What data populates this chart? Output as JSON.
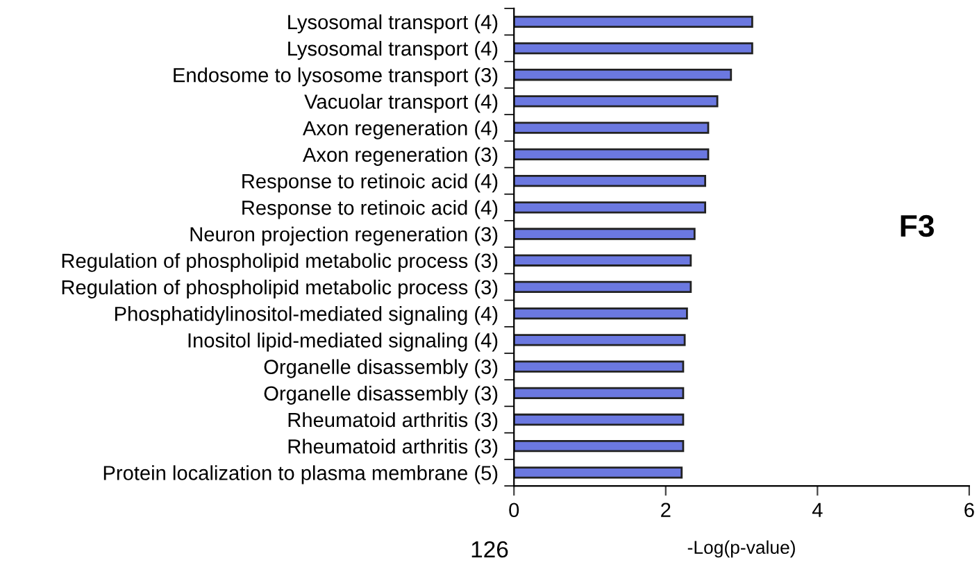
{
  "chart_data": {
    "type": "bar",
    "orientation": "horizontal",
    "xlabel": "-Log(p-value)",
    "categories": [
      "Lysosomal transport (4)",
      "Lysosomal transport (4)",
      "Endosome to lysosome transport (3)",
      "Vacuolar transport (4)",
      "Axon regeneration (4)",
      "Axon regeneration (3)",
      "Response to retinoic acid (4)",
      "Response to retinoic acid (4)",
      "Neuron projection regeneration (3)",
      "Regulation of phospholipid metabolic process (3)",
      "Regulation of phospholipid metabolic process (3)",
      "Phosphatidylinositol-mediated signaling (4)",
      "Inositol lipid-mediated signaling (4)",
      "Organelle disassembly (3)",
      "Organelle disassembly (3)",
      "Rheumatoid arthritis (3)",
      "Rheumatoid arthritis (3)",
      "Protein localization to plasma membrane (5)"
    ],
    "values": [
      3.14,
      3.14,
      2.86,
      2.68,
      2.56,
      2.56,
      2.52,
      2.52,
      2.38,
      2.33,
      2.33,
      2.28,
      2.25,
      2.23,
      2.23,
      2.23,
      2.23,
      2.21
    ],
    "color": "#6b78e0",
    "xlim": [
      0,
      6
    ],
    "xticks": [
      0,
      2,
      4,
      6
    ],
    "grid": false,
    "legend": false,
    "annotations": [
      "F3",
      "126"
    ]
  }
}
